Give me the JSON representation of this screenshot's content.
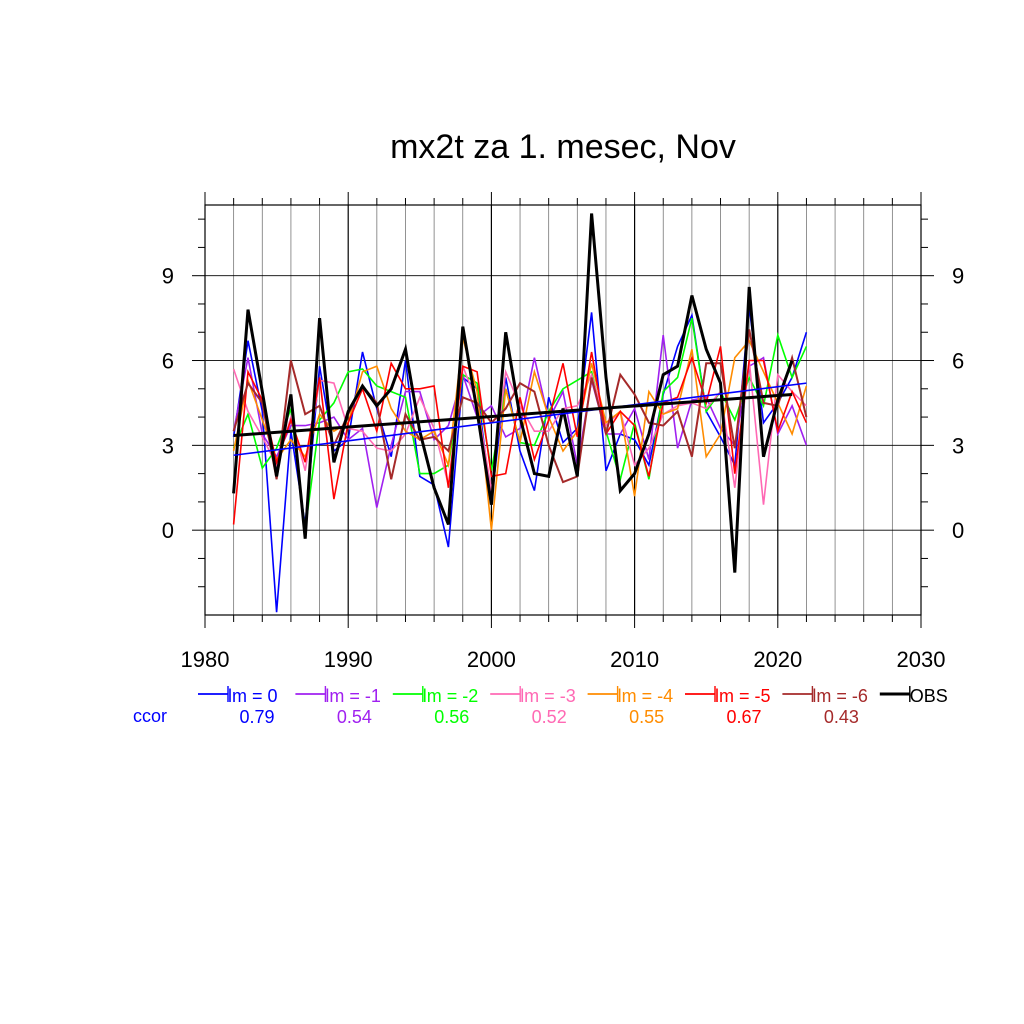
{
  "chart_data": {
    "type": "line",
    "title": "mx2t za 1. mesec, Nov",
    "xlabel": "",
    "ylabel": "",
    "xlim": [
      1980,
      2030
    ],
    "ylim": [
      -3,
      11.5
    ],
    "xticks": [
      1980,
      1990,
      2000,
      2010,
      2020,
      2030
    ],
    "yticks": [
      0,
      3,
      6,
      9
    ],
    "x_tick_labels": [
      "1980",
      "1990",
      "2000",
      "2010",
      "2020",
      "2030"
    ],
    "y_tick_labels": [
      "0",
      "3",
      "6",
      "9"
    ],
    "grid": true,
    "years": [
      1982,
      1983,
      1984,
      1985,
      1986,
      1987,
      1988,
      1989,
      1990,
      1991,
      1992,
      1993,
      1994,
      1995,
      1996,
      1997,
      1998,
      1999,
      2000,
      2001,
      2002,
      2003,
      2004,
      2005,
      2006,
      2007,
      2008,
      2009,
      2010,
      2011,
      2012,
      2013,
      2014,
      2015,
      2016,
      2017,
      2018,
      2019,
      2020,
      2021,
      2022
    ],
    "series": [
      {
        "name": "lm = 0",
        "color": "#0000ff",
        "width": 1.6,
        "values": [
          3.3,
          6.7,
          4.2,
          -2.9,
          3.5,
          0.2,
          5.8,
          2.8,
          3.2,
          6.3,
          4.3,
          2.6,
          6.0,
          1.9,
          1.6,
          -0.6,
          5.4,
          5.0,
          1.0,
          5.4,
          2.8,
          1.4,
          4.7,
          3.1,
          3.6,
          7.7,
          2.1,
          3.4,
          3.2,
          2.3,
          4.8,
          6.5,
          7.6,
          4.2,
          3.3,
          2.3,
          7.9,
          3.8,
          4.5,
          5.4,
          7.0
        ]
      },
      {
        "name": "lm = -1",
        "color": "#a020f0",
        "width": 1.6,
        "values": [
          3.5,
          6.1,
          3.4,
          2.6,
          3.7,
          3.7,
          3.8,
          4.0,
          3.2,
          3.6,
          0.8,
          3.0,
          4.9,
          4.9,
          3.2,
          3.7,
          5.5,
          4.0,
          4.4,
          3.3,
          3.6,
          6.1,
          3.9,
          4.9,
          2.3,
          5.3,
          3.4,
          3.4,
          4.3,
          2.5,
          6.9,
          2.9,
          4.6,
          4.7,
          3.6,
          3.0,
          5.8,
          6.1,
          3.4,
          4.4,
          3.0
        ]
      },
      {
        "name": "lm = -2",
        "color": "#00ff00",
        "width": 1.6,
        "values": [
          2.9,
          4.1,
          2.2,
          2.9,
          4.3,
          0.0,
          3.9,
          4.5,
          5.6,
          5.7,
          5.1,
          4.9,
          4.7,
          2.0,
          2.0,
          2.3,
          5.5,
          5.2,
          2.1,
          5.0,
          3.1,
          3.0,
          4.2,
          5.0,
          5.3,
          5.6,
          3.5,
          1.8,
          3.8,
          1.8,
          4.9,
          5.4,
          7.5,
          4.2,
          4.9,
          3.9,
          5.4,
          4.4,
          6.9,
          5.4,
          6.5
        ]
      },
      {
        "name": "lm = -3",
        "color": "#ff69b4",
        "width": 1.6,
        "values": [
          5.7,
          4.2,
          3.3,
          2.3,
          4.0,
          2.1,
          5.3,
          5.2,
          3.6,
          3.5,
          2.9,
          2.8,
          3.4,
          4.7,
          3.6,
          1.6,
          5.8,
          4.5,
          1.4,
          5.6,
          4.4,
          3.5,
          3.5,
          4.3,
          4.4,
          5.5,
          3.7,
          4.2,
          2.3,
          2.9,
          4.1,
          4.4,
          4.5,
          4.3,
          4.9,
          1.5,
          6.0,
          0.9,
          5.5,
          4.9,
          4.4
        ]
      },
      {
        "name": "lm = -4",
        "color": "#ff8c00",
        "width": 1.6,
        "values": [
          2.8,
          5.3,
          3.9,
          2.5,
          3.2,
          2.6,
          4.1,
          3.5,
          3.8,
          5.6,
          5.8,
          4.3,
          3.5,
          3.2,
          3.5,
          2.3,
          6.8,
          4.9,
          0.0,
          5.0,
          3.1,
          5.6,
          4.0,
          2.8,
          3.5,
          5.9,
          3.8,
          4.2,
          1.2,
          4.9,
          4.1,
          4.3,
          6.4,
          2.6,
          3.4,
          6.1,
          6.7,
          5.6,
          4.5,
          3.4,
          5.1
        ]
      },
      {
        "name": "lm = -5",
        "color": "#ff0000",
        "width": 1.6,
        "values": [
          0.2,
          5.6,
          4.6,
          2.4,
          3.9,
          2.4,
          5.4,
          1.1,
          3.8,
          5.0,
          3.5,
          5.9,
          5.0,
          5.0,
          5.1,
          1.5,
          5.8,
          5.6,
          1.9,
          2.0,
          4.7,
          2.5,
          3.9,
          5.9,
          3.3,
          6.3,
          3.4,
          4.2,
          3.7,
          1.9,
          4.5,
          4.7,
          6.1,
          4.5,
          6.5,
          2.0,
          6.0,
          6.0,
          3.5,
          4.9,
          3.8
        ]
      },
      {
        "name": "lm = -6",
        "color": "#a52a2a",
        "width": 2.0,
        "values": [
          3.5,
          5.2,
          4.5,
          1.8,
          6.0,
          4.1,
          4.4,
          3.0,
          4.1,
          5.1,
          4.5,
          1.8,
          4.1,
          3.2,
          3.3,
          2.8,
          4.7,
          4.5,
          3.8,
          4.3,
          5.2,
          4.9,
          3.0,
          1.7,
          1.9,
          5.4,
          3.4,
          5.5,
          4.8,
          3.8,
          3.7,
          4.2,
          2.6,
          5.9,
          5.9,
          2.9,
          7.1,
          4.5,
          4.4,
          6.1,
          4.0
        ]
      },
      {
        "name": "OBS",
        "color": "#000000",
        "width": 3.0,
        "values": [
          1.3,
          7.8,
          4.9,
          1.9,
          4.8,
          -0.3,
          7.5,
          2.4,
          4.2,
          5.1,
          4.4,
          5.0,
          6.4,
          3.5,
          1.5,
          0.2,
          7.2,
          4.2,
          0.9,
          7.0,
          4.0,
          2.0,
          1.9,
          4.3,
          1.9,
          11.2,
          5.4,
          1.4,
          2.0,
          3.4,
          5.5,
          5.8,
          8.3,
          6.4,
          5.2,
          -1.5,
          8.6,
          2.6,
          4.6,
          6.0,
          null
        ]
      }
    ],
    "trends": [
      {
        "name": "lm = 0",
        "color": "#0000ff",
        "width": 1.6,
        "x": [
          1982,
          2022
        ],
        "y": [
          2.65,
          5.2
        ]
      },
      {
        "name": "OBS",
        "color": "#000000",
        "width": 3.0,
        "x": [
          1982,
          2021
        ],
        "y": [
          3.35,
          4.8
        ]
      }
    ],
    "legend": {
      "placement": "bottom",
      "row_label": "ccor",
      "row_label_color": "#0000ff",
      "entries": [
        {
          "label": "lm = 0",
          "ccor": "0.79",
          "color": "#0000ff"
        },
        {
          "label": "lm = -1",
          "ccor": "0.54",
          "color": "#a020f0"
        },
        {
          "label": "lm = -2",
          "ccor": "0.56",
          "color": "#00ff00"
        },
        {
          "label": "lm = -3",
          "ccor": "0.52",
          "color": "#ff69b4"
        },
        {
          "label": "lm = -4",
          "ccor": "0.55",
          "color": "#ff8c00"
        },
        {
          "label": "lm = -5",
          "ccor": "0.67",
          "color": "#ff0000"
        },
        {
          "label": "lm = -6",
          "ccor": "0.43",
          "color": "#a52a2a"
        },
        {
          "label": "OBS",
          "ccor": "",
          "color": "#000000"
        }
      ]
    }
  }
}
